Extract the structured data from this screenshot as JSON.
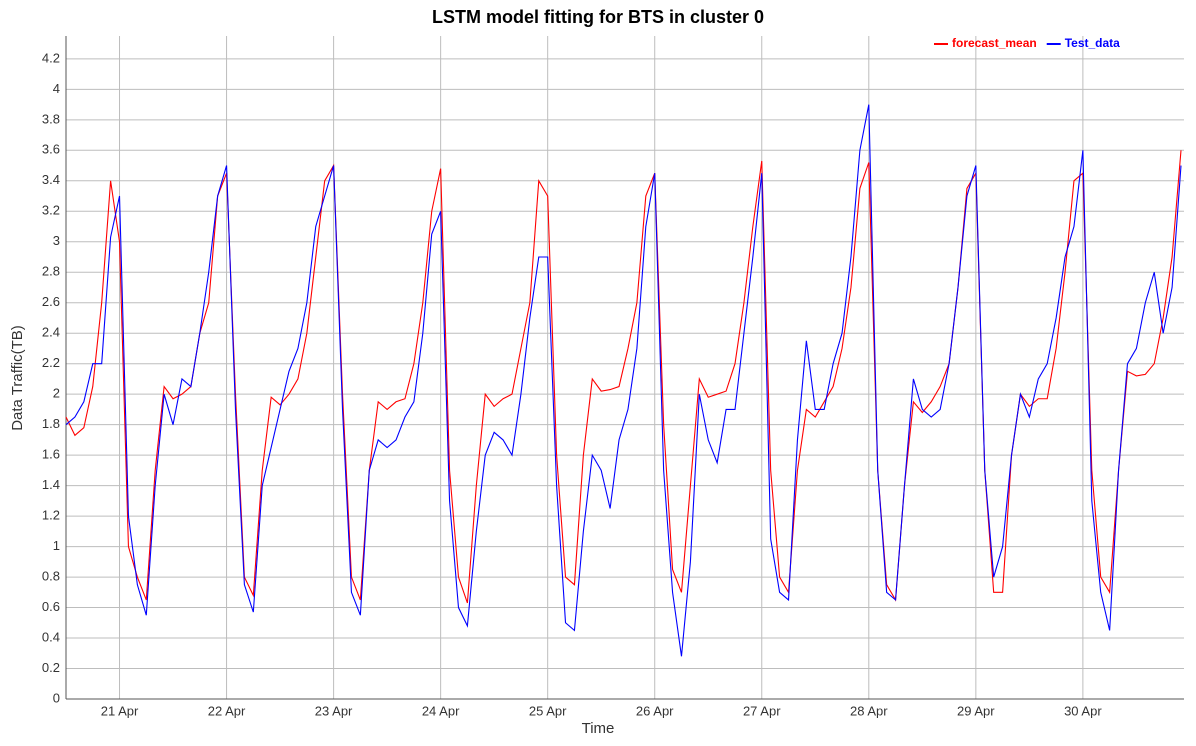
{
  "chart_data": {
    "type": "line",
    "title": "LSTM model fitting for BTS in cluster 0",
    "x_label": "Time",
    "y_label": "Data Traffic(TB)",
    "categories": [
      null,
      null,
      null,
      null,
      null,
      null,
      "21 Apr",
      null,
      null,
      null,
      null,
      null,
      null,
      null,
      null,
      null,
      null,
      null,
      "22 Apr",
      null,
      null,
      null,
      null,
      null,
      null,
      null,
      null,
      null,
      null,
      null,
      "23 Apr",
      null,
      null,
      null,
      null,
      null,
      null,
      null,
      null,
      null,
      null,
      null,
      "24 Apr",
      null,
      null,
      null,
      null,
      null,
      null,
      null,
      null,
      null,
      null,
      null,
      "25 Apr",
      null,
      null,
      null,
      null,
      null,
      null,
      null,
      null,
      null,
      null,
      null,
      "26 Apr",
      null,
      null,
      null,
      null,
      null,
      null,
      null,
      null,
      null,
      null,
      null,
      "27 Apr",
      null,
      null,
      null,
      null,
      null,
      null,
      null,
      null,
      null,
      null,
      null,
      "28 Apr",
      null,
      null,
      null,
      null,
      null,
      null,
      null,
      null,
      null,
      null,
      null,
      "29 Apr",
      null,
      null,
      null,
      null,
      null,
      null,
      null,
      null,
      null,
      null,
      null,
      "30 Apr",
      null,
      null,
      null,
      null,
      null,
      null,
      null,
      null,
      null,
      null,
      null
    ],
    "series": [
      {
        "name": "forecast_mean",
        "color": "#ff0000",
        "values": [
          1.85,
          1.73,
          1.78,
          2.05,
          2.6,
          3.4,
          3.0,
          1.0,
          0.8,
          0.65,
          1.5,
          2.05,
          1.97,
          2.0,
          2.05,
          2.4,
          2.6,
          3.3,
          3.45,
          2.0,
          0.8,
          0.68,
          1.5,
          1.98,
          1.93,
          2.0,
          2.1,
          2.4,
          2.9,
          3.4,
          3.5,
          2.0,
          0.8,
          0.65,
          1.5,
          1.95,
          1.9,
          1.95,
          1.97,
          2.2,
          2.6,
          3.2,
          3.48,
          1.5,
          0.8,
          0.63,
          1.4,
          2.0,
          1.92,
          1.97,
          2.0,
          2.3,
          2.6,
          3.4,
          3.3,
          1.6,
          0.8,
          0.75,
          1.6,
          2.1,
          2.02,
          2.03,
          2.05,
          2.3,
          2.6,
          3.3,
          3.45,
          1.8,
          0.85,
          0.7,
          1.4,
          2.1,
          1.98,
          2.0,
          2.02,
          2.2,
          2.6,
          3.1,
          3.53,
          1.5,
          0.8,
          0.7,
          1.5,
          1.9,
          1.85,
          1.95,
          2.05,
          2.3,
          2.7,
          3.35,
          3.52,
          1.5,
          0.75,
          0.65,
          1.4,
          1.95,
          1.88,
          1.95,
          2.05,
          2.2,
          2.7,
          3.35,
          3.45,
          1.5,
          0.7,
          0.7,
          1.6,
          2.0,
          1.92,
          1.97,
          1.97,
          2.3,
          2.8,
          3.4,
          3.45,
          1.5,
          0.8,
          0.7,
          1.5,
          2.15,
          2.12,
          2.13,
          2.2,
          2.5,
          2.9,
          3.6
        ]
      },
      {
        "name": "Test_data",
        "color": "#0000ff",
        "values": [
          1.8,
          1.85,
          1.95,
          2.2,
          2.2,
          3.03,
          3.3,
          1.2,
          0.75,
          0.55,
          1.4,
          2.0,
          1.8,
          2.1,
          2.05,
          2.4,
          2.8,
          3.3,
          3.5,
          1.9,
          0.75,
          0.57,
          1.4,
          1.65,
          1.9,
          2.15,
          2.3,
          2.6,
          3.1,
          3.3,
          3.5,
          1.9,
          0.7,
          0.55,
          1.5,
          1.7,
          1.65,
          1.7,
          1.85,
          1.95,
          2.4,
          3.05,
          3.2,
          1.3,
          0.6,
          0.48,
          1.1,
          1.6,
          1.75,
          1.7,
          1.6,
          2.0,
          2.5,
          2.9,
          2.9,
          1.4,
          0.5,
          0.45,
          1.1,
          1.6,
          1.5,
          1.25,
          1.7,
          1.9,
          2.3,
          3.1,
          3.45,
          1.5,
          0.7,
          0.28,
          0.9,
          2.0,
          1.7,
          1.55,
          1.9,
          1.9,
          2.4,
          2.9,
          3.45,
          1.05,
          0.7,
          0.65,
          1.7,
          2.35,
          1.9,
          1.9,
          2.2,
          2.4,
          2.9,
          3.6,
          3.9,
          1.5,
          0.7,
          0.65,
          1.4,
          2.1,
          1.9,
          1.85,
          1.9,
          2.2,
          2.7,
          3.3,
          3.5,
          1.5,
          0.8,
          1.0,
          1.6,
          2.0,
          1.85,
          2.1,
          2.2,
          2.5,
          2.9,
          3.1,
          3.6,
          1.3,
          0.7,
          0.45,
          1.5,
          2.2,
          2.3,
          2.6,
          2.8,
          2.4,
          2.7,
          3.5
        ]
      }
    ],
    "ylim": [
      0,
      4.35
    ],
    "yticks": [
      0,
      0.2,
      0.4,
      0.6,
      0.8,
      1,
      1.2,
      1.4,
      1.6,
      1.8,
      2,
      2.2,
      2.4,
      2.6,
      2.8,
      3,
      3.2,
      3.4,
      3.6,
      3.8,
      4,
      4.2
    ],
    "grid": true,
    "legend": "top-right"
  }
}
